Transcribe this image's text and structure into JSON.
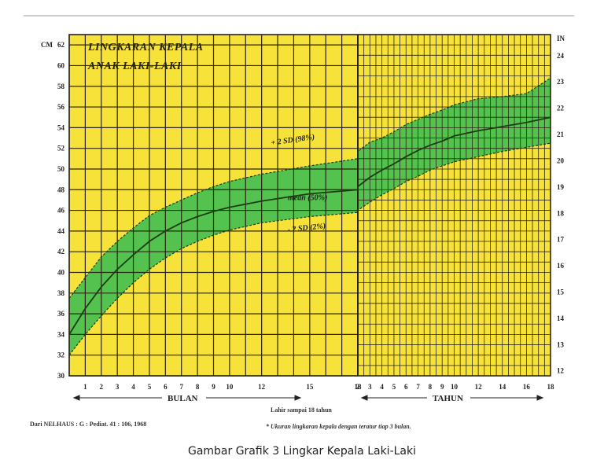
{
  "caption": "Gambar Grafik 3 Lingkar Kepala Laki-Laki",
  "chart_data": {
    "type": "area",
    "title_line1": "LINGKARAN KEPALA",
    "title_line2": "ANAK LAKI-LAKI",
    "left_unit": "CM",
    "right_unit": "IN",
    "y_ticks_cm": [
      30,
      32,
      34,
      36,
      38,
      40,
      42,
      44,
      46,
      48,
      50,
      52,
      54,
      56,
      58,
      60,
      62
    ],
    "y_ticks_in": [
      12,
      13,
      14,
      15,
      16,
      17,
      18,
      19,
      20,
      21,
      22,
      23,
      24
    ],
    "ylim_cm": [
      30,
      63
    ],
    "month_ticks": [
      "1",
      "2",
      "3",
      "4",
      "5",
      "6",
      "7",
      "8",
      "9",
      "10",
      "12",
      "15",
      "18"
    ],
    "year_ticks": [
      "2",
      "3",
      "4",
      "5",
      "6",
      "7",
      "8",
      "9",
      "10",
      "12",
      "14",
      "16",
      "18"
    ],
    "months_label": "BULAN",
    "years_label": "TAHUN",
    "range_note": "Lahir sampai 18 tahun",
    "source_note": "Dari NELHAUS : G : Pediat. 41 : 106, 1968",
    "measure_note": "* Ukuran lingkaran kepala dengan teratur tiap 3 bulan.",
    "series": [
      {
        "name": "+ 2 SD (98%)",
        "x": [
          "0",
          "1",
          "2",
          "3",
          "4",
          "5",
          "6",
          "7",
          "8",
          "9",
          "10",
          "12",
          "15",
          "18",
          "2",
          "3",
          "4",
          "5",
          "6",
          "7",
          "8",
          "9",
          "10",
          "12",
          "14",
          "16",
          "18"
        ],
        "values": [
          37.5,
          39.5,
          41.5,
          43.0,
          44.3,
          45.5,
          46.3,
          47.0,
          47.7,
          48.3,
          48.8,
          49.5,
          50.3,
          51.0,
          51.7,
          52.6,
          53.0,
          53.6,
          54.3,
          54.8,
          55.3,
          55.7,
          56.2,
          56.8,
          57.0,
          57.3,
          58.8
        ]
      },
      {
        "name": "mean (50%)",
        "x": [
          "0",
          "1",
          "2",
          "3",
          "4",
          "5",
          "6",
          "7",
          "8",
          "9",
          "10",
          "12",
          "15",
          "18",
          "2",
          "3",
          "4",
          "5",
          "6",
          "7",
          "8",
          "9",
          "10",
          "12",
          "14",
          "16",
          "18"
        ],
        "values": [
          34.0,
          36.5,
          38.6,
          40.3,
          41.7,
          43.0,
          44.0,
          44.8,
          45.4,
          45.9,
          46.3,
          46.9,
          47.6,
          48.0,
          48.3,
          49.2,
          49.9,
          50.5,
          51.2,
          51.8,
          52.3,
          52.7,
          53.2,
          53.7,
          54.1,
          54.5,
          55.0
        ]
      },
      {
        "name": "- 2 SD (2%)",
        "x": [
          "0",
          "1",
          "2",
          "3",
          "4",
          "5",
          "6",
          "7",
          "8",
          "9",
          "10",
          "12",
          "15",
          "18",
          "2",
          "3",
          "4",
          "5",
          "6",
          "7",
          "8",
          "9",
          "10",
          "12",
          "14",
          "16",
          "18"
        ],
        "values": [
          32.0,
          34.0,
          35.8,
          37.5,
          39.0,
          40.3,
          41.4,
          42.3,
          43.0,
          43.6,
          44.1,
          44.8,
          45.4,
          45.8,
          46.0,
          46.8,
          47.5,
          48.1,
          48.8,
          49.3,
          49.9,
          50.3,
          50.7,
          51.2,
          51.7,
          52.1,
          52.5
        ]
      }
    ],
    "colors": {
      "background": "#f7e23a",
      "band": "#53c24e",
      "grid": "#2a2412",
      "line": "#1c3d12"
    }
  }
}
